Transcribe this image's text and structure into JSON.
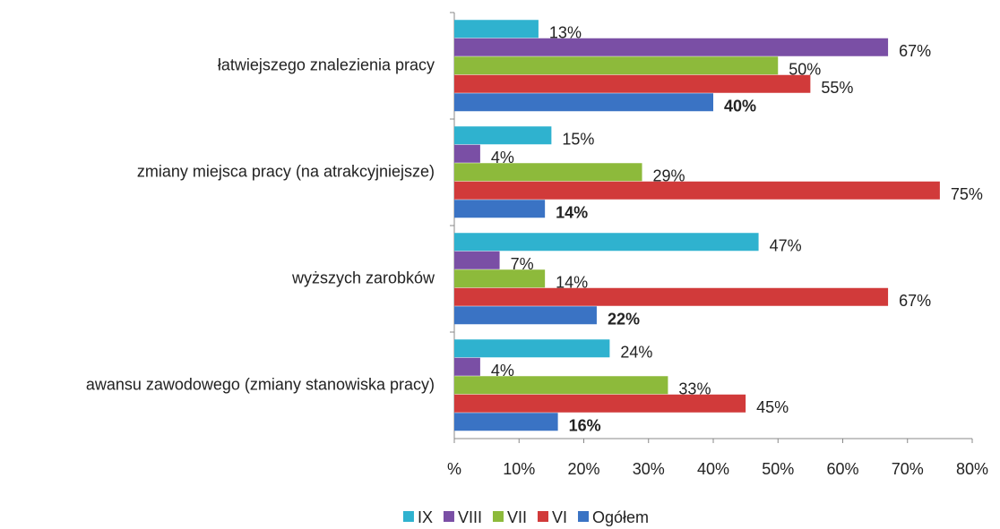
{
  "chart_data": {
    "type": "bar",
    "orientation": "horizontal",
    "categories": [
      "łatwiejszego znalezienia pracy",
      "zmiany miejsca pracy (na atrakcyjniejsze)",
      "wyższych zarobków",
      "awansu zawodowego (zmiany stanowiska pracy)"
    ],
    "series": [
      {
        "name": "IX",
        "color": "#2fb2cf",
        "values": [
          13,
          15,
          47,
          24
        ],
        "value_labels": [
          "13%",
          "15%",
          "47%",
          "24%"
        ]
      },
      {
        "name": "VIII",
        "color": "#7a4fa5",
        "values": [
          67,
          4,
          7,
          4
        ],
        "value_labels": [
          "67%",
          "4%",
          "7%",
          "4%"
        ]
      },
      {
        "name": "VII",
        "color": "#8dba3b",
        "values": [
          50,
          29,
          14,
          33
        ],
        "value_labels": [
          "50%",
          "29%",
          "14%",
          "33%"
        ]
      },
      {
        "name": "VI",
        "color": "#d13a3a",
        "values": [
          55,
          75,
          67,
          45
        ],
        "value_labels": [
          "55%",
          "75%",
          "67%",
          "45%"
        ]
      },
      {
        "name": "Ogółem",
        "color": "#3a73c4",
        "values": [
          40,
          14,
          22,
          16
        ],
        "value_labels": [
          "40%",
          "14%",
          "22%",
          "16%"
        ]
      }
    ],
    "xlim": [
      0,
      80
    ],
    "xticks": [
      {
        "value": 0,
        "label": "%"
      },
      {
        "value": 10,
        "label": "10%"
      },
      {
        "value": 20,
        "label": "20%"
      },
      {
        "value": 30,
        "label": "30%"
      },
      {
        "value": 40,
        "label": "40%"
      },
      {
        "value": 50,
        "label": "50%"
      },
      {
        "value": 60,
        "label": "60%"
      },
      {
        "value": 70,
        "label": "70%"
      },
      {
        "value": 80,
        "label": "80%"
      }
    ],
    "legend": "bottom"
  }
}
